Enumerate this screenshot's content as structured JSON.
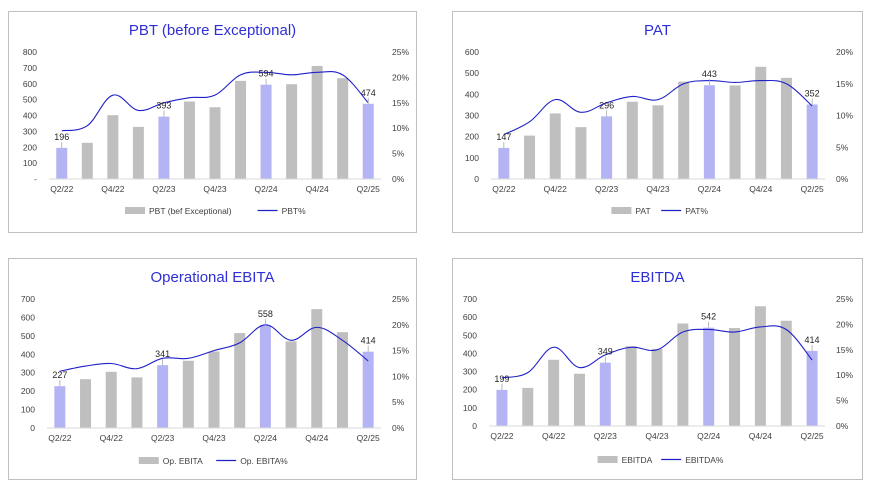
{
  "colors": {
    "bar_grey": "#bfbfbf",
    "bar_highlight": "#b4b4f5",
    "line": "#2020c8",
    "title": "#2f2fd6"
  },
  "chart_data": [
    {
      "type": "bar",
      "title": "PBT (before Exceptional)",
      "categories": [
        "Q2/22",
        "Q3/22",
        "Q4/22",
        "Q1/23",
        "Q2/23",
        "Q3/23",
        "Q4/23",
        "Q1/24",
        "Q2/24",
        "Q3/24",
        "Q4/24",
        "Q1/25",
        "Q2/25"
      ],
      "x_tick_labels": [
        "Q2/22",
        "",
        "Q4/22",
        "",
        "Q2/23",
        "",
        "Q4/23",
        "",
        "Q2/24",
        "",
        "Q4/24",
        "",
        "Q2/25"
      ],
      "series": [
        {
          "name": "PBT (bef Exceptional)",
          "type": "bar",
          "axis": "left",
          "values": [
            196,
            228,
            402,
            328,
            393,
            488,
            452,
            618,
            594,
            597,
            712,
            635,
            474
          ]
        },
        {
          "name": "PBT%",
          "type": "line",
          "axis": "right",
          "values": [
            9.5,
            10.5,
            16.5,
            13.5,
            15.0,
            16.0,
            16.5,
            20.5,
            21.0,
            20.5,
            21.0,
            20.5,
            15.0
          ]
        }
      ],
      "highlight_indices": [
        0,
        4,
        8,
        12
      ],
      "data_labels": [
        "196",
        "393",
        "594",
        "474"
      ],
      "y_left_ticks": [
        "-",
        "100",
        "200",
        "300",
        "400",
        "500",
        "600",
        "700",
        "800"
      ],
      "y_right_ticks": [
        "0%",
        "5%",
        "10%",
        "15%",
        "20%",
        "25%"
      ],
      "ylim": [
        0,
        800
      ],
      "y2lim": [
        0,
        25
      ],
      "legend": {
        "bar": "PBT (bef Exceptional)",
        "line": "PBT%"
      }
    },
    {
      "type": "bar",
      "title": "PAT",
      "categories": [
        "Q2/22",
        "Q3/22",
        "Q4/22",
        "Q1/23",
        "Q2/23",
        "Q3/23",
        "Q4/23",
        "Q1/24",
        "Q2/24",
        "Q3/24",
        "Q4/24",
        "Q1/25",
        "Q2/25"
      ],
      "x_tick_labels": [
        "Q2/22",
        "",
        "Q4/22",
        "",
        "Q2/23",
        "",
        "Q4/23",
        "",
        "Q2/24",
        "",
        "Q4/24",
        "",
        "Q2/25"
      ],
      "series": [
        {
          "name": "PAT",
          "type": "bar",
          "axis": "left",
          "values": [
            147,
            205,
            310,
            245,
            296,
            365,
            348,
            460,
            443,
            442,
            530,
            478,
            352
          ]
        },
        {
          "name": "PAT%",
          "type": "line",
          "axis": "right",
          "values": [
            7.0,
            9.0,
            12.5,
            10.5,
            12.0,
            13.0,
            12.5,
            15.0,
            15.5,
            15.2,
            15.5,
            15.0,
            11.5
          ]
        }
      ],
      "highlight_indices": [
        0,
        4,
        8,
        12
      ],
      "data_labels": [
        "147",
        "296",
        "443",
        "352"
      ],
      "y_left_ticks": [
        "0",
        "100",
        "200",
        "300",
        "400",
        "500",
        "600"
      ],
      "y_right_ticks": [
        "0%",
        "5%",
        "10%",
        "15%",
        "20%"
      ],
      "ylim": [
        0,
        600
      ],
      "y2lim": [
        0,
        20
      ],
      "legend": {
        "bar": "PAT",
        "line": "PAT%"
      }
    },
    {
      "type": "bar",
      "title": "Operational EBITA",
      "categories": [
        "Q2/22",
        "Q3/22",
        "Q4/22",
        "Q1/23",
        "Q2/23",
        "Q3/23",
        "Q4/23",
        "Q1/24",
        "Q2/24",
        "Q3/24",
        "Q4/24",
        "Q1/25",
        "Q2/25"
      ],
      "x_tick_labels": [
        "Q2/22",
        "",
        "Q4/22",
        "",
        "Q2/23",
        "",
        "Q4/23",
        "",
        "Q2/24",
        "",
        "Q4/24",
        "",
        "Q2/25"
      ],
      "series": [
        {
          "name": "Op. EBITA",
          "type": "bar",
          "axis": "left",
          "values": [
            227,
            265,
            305,
            275,
            341,
            365,
            415,
            515,
            558,
            470,
            645,
            520,
            414
          ]
        },
        {
          "name": "Op. EBITA%",
          "type": "line",
          "axis": "right",
          "values": [
            11.0,
            12.0,
            12.5,
            11.5,
            13.5,
            13.5,
            15.0,
            16.5,
            20.0,
            17.0,
            19.5,
            17.0,
            13.0
          ]
        }
      ],
      "highlight_indices": [
        0,
        4,
        8,
        12
      ],
      "data_labels": [
        "227",
        "341",
        "558",
        "414"
      ],
      "y_left_ticks": [
        "0",
        "100",
        "200",
        "300",
        "400",
        "500",
        "600",
        "700"
      ],
      "y_right_ticks": [
        "0%",
        "5%",
        "10%",
        "15%",
        "20%",
        "25%"
      ],
      "ylim": [
        0,
        700
      ],
      "y2lim": [
        0,
        25
      ],
      "legend": {
        "bar": "Op. EBITA",
        "line": "Op. EBITA%"
      }
    },
    {
      "type": "bar",
      "title": "EBITDA",
      "categories": [
        "Q2/22",
        "Q3/22",
        "Q4/22",
        "Q1/23",
        "Q2/23",
        "Q3/23",
        "Q4/23",
        "Q1/24",
        "Q2/24",
        "Q3/24",
        "Q4/24",
        "Q1/25",
        "Q2/25"
      ],
      "x_tick_labels": [
        "Q2/22",
        "",
        "Q4/22",
        "",
        "Q2/23",
        "",
        "Q4/23",
        "",
        "Q2/24",
        "",
        "Q4/24",
        "",
        "Q2/25"
      ],
      "series": [
        {
          "name": "EBITDA",
          "type": "bar",
          "axis": "left",
          "values": [
            199,
            210,
            365,
            288,
            349,
            440,
            425,
            565,
            542,
            540,
            660,
            580,
            414
          ]
        },
        {
          "name": "EBITDA%",
          "type": "line",
          "axis": "right",
          "values": [
            9.5,
            10.5,
            15.5,
            11.5,
            14.0,
            15.5,
            15.0,
            18.5,
            19.0,
            18.5,
            19.5,
            19.0,
            13.0
          ]
        }
      ],
      "highlight_indices": [
        0,
        4,
        8,
        12
      ],
      "data_labels": [
        "199",
        "349",
        "542",
        "414"
      ],
      "y_left_ticks": [
        "0",
        "100",
        "200",
        "300",
        "400",
        "500",
        "600",
        "700"
      ],
      "y_right_ticks": [
        "0%",
        "5%",
        "10%",
        "15%",
        "20%",
        "25%"
      ],
      "ylim": [
        0,
        700
      ],
      "y2lim": [
        0,
        25
      ],
      "legend": {
        "bar": "EBITDA",
        "line": "EBITDA%"
      }
    }
  ]
}
